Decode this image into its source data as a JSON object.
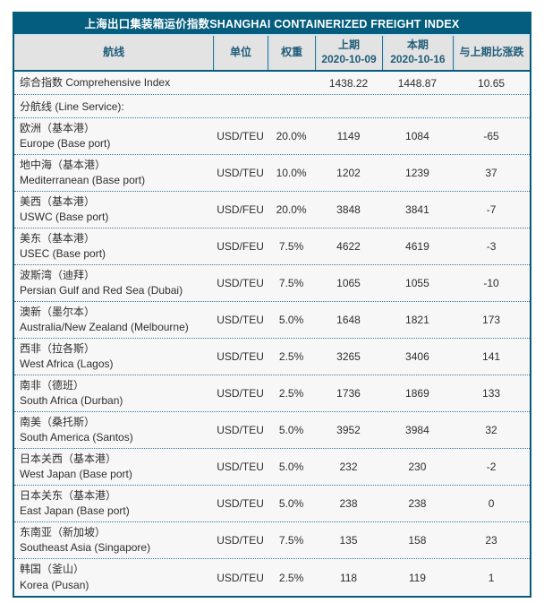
{
  "title": "上海出口集装箱运价指数SHANGHAI CONTAINERIZED FREIGHT INDEX",
  "columns": {
    "route": "航线",
    "unit": "单位",
    "weight": "权重",
    "prev_label": "上期",
    "prev_date": "2020-10-09",
    "curr_label": "本期",
    "curr_date": "2020-10-16",
    "change": "与上期比涨跌"
  },
  "comprehensive": {
    "name": "综合指数 Comprehensive Index",
    "unit": "",
    "weight": "",
    "prev": "1438.22",
    "curr": "1448.87",
    "change": "10.65"
  },
  "section_label": "分航线 (Line Service):",
  "rows": [
    {
      "cn": "欧洲（基本港）",
      "en": "Europe (Base port)",
      "unit": "USD/TEU",
      "weight": "20.0%",
      "prev": "1149",
      "curr": "1084",
      "change": "-65"
    },
    {
      "cn": "地中海（基本港）",
      "en": "Mediterranean (Base port)",
      "unit": "USD/TEU",
      "weight": "10.0%",
      "prev": "1202",
      "curr": "1239",
      "change": "37"
    },
    {
      "cn": "美西（基本港）",
      "en": "USWC (Base port)",
      "unit": "USD/FEU",
      "weight": "20.0%",
      "prev": "3848",
      "curr": "3841",
      "change": "-7"
    },
    {
      "cn": "美东（基本港）",
      "en": "USEC (Base port)",
      "unit": "USD/FEU",
      "weight": "7.5%",
      "prev": "4622",
      "curr": "4619",
      "change": "-3"
    },
    {
      "cn": "波斯湾（迪拜）",
      "en": "Persian Gulf and Red Sea (Dubai)",
      "unit": "USD/TEU",
      "weight": "7.5%",
      "prev": "1065",
      "curr": "1055",
      "change": "-10"
    },
    {
      "cn": "澳新（墨尔本）",
      "en": "Australia/New Zealand (Melbourne)",
      "unit": "USD/TEU",
      "weight": "5.0%",
      "prev": "1648",
      "curr": "1821",
      "change": "173"
    },
    {
      "cn": "西非（拉各斯）",
      "en": "West Africa (Lagos)",
      "unit": "USD/TEU",
      "weight": "2.5%",
      "prev": "3265",
      "curr": "3406",
      "change": "141"
    },
    {
      "cn": "南非（德班）",
      "en": "South Africa (Durban)",
      "unit": "USD/TEU",
      "weight": "2.5%",
      "prev": "1736",
      "curr": "1869",
      "change": "133"
    },
    {
      "cn": "南美（桑托斯）",
      "en": "South America (Santos)",
      "unit": "USD/TEU",
      "weight": "5.0%",
      "prev": "3952",
      "curr": "3984",
      "change": "32"
    },
    {
      "cn": "日本关西（基本港）",
      "en": "West Japan (Base port)",
      "unit": "USD/TEU",
      "weight": "5.0%",
      "prev": "232",
      "curr": "230",
      "change": "-2"
    },
    {
      "cn": "日本关东（基本港）",
      "en": "East Japan (Base port)",
      "unit": "USD/TEU",
      "weight": "5.0%",
      "prev": "238",
      "curr": "238",
      "change": "0"
    },
    {
      "cn": "东南亚（新加坡）",
      "en": "Southeast Asia (Singapore)",
      "unit": "USD/TEU",
      "weight": "7.5%",
      "prev": "135",
      "curr": "158",
      "change": "23"
    },
    {
      "cn": "韩国（釜山）",
      "en": "Korea (Pusan)",
      "unit": "USD/TEU",
      "weight": "2.5%",
      "prev": "118",
      "curr": "119",
      "change": "1"
    }
  ],
  "colors": {
    "accent_teal": "#045d7d",
    "header_row_bg": "#e3e3e3",
    "header_text": "#1f5d79",
    "body_bg": "#f7f7f7",
    "row_divider": "#3579a0",
    "light_blue_line": "#c9e2ef"
  }
}
